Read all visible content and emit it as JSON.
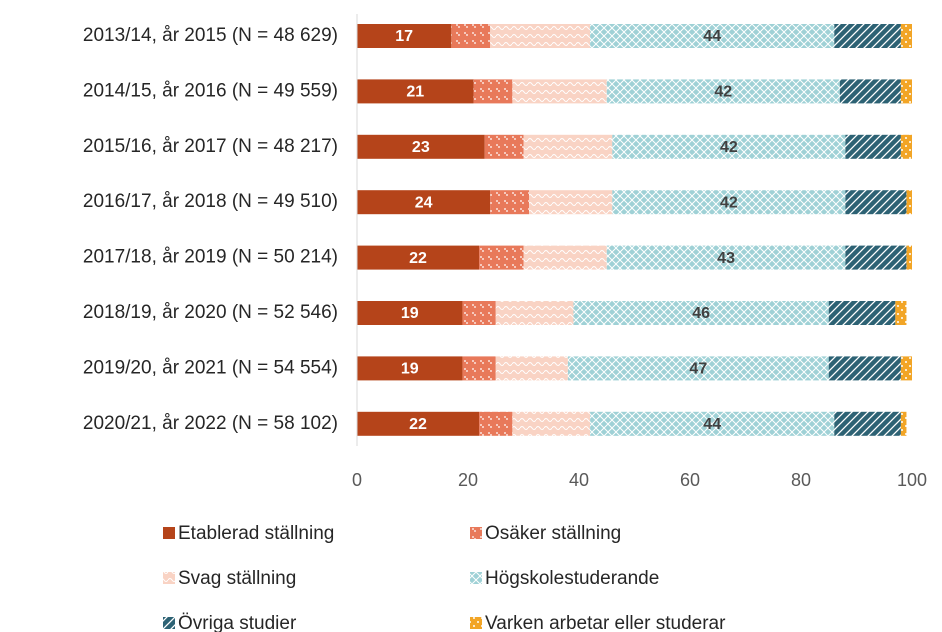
{
  "chart_data": {
    "type": "stacked_barh",
    "categories": [
      "2013/14, år 2015 (N = 48 629)",
      "2014/15, år 2016 (N = 49 559)",
      "2015/16, år 2017 (N = 48 217)",
      "2016/17, år 2018 (N = 49 510)",
      "2017/18, år 2019 (N = 50 214)",
      "2018/19, år 2020 (N = 52 546)",
      "2019/20, år 2021 (N = 54 554)",
      "2020/21, år 2022 (N = 58 102)"
    ],
    "series": [
      {
        "name": "Etablerad ställning",
        "color": "#b5441a",
        "pattern": "solid",
        "show_labels": true,
        "label_color": "#ffffff",
        "values": [
          17,
          21,
          23,
          24,
          22,
          19,
          19,
          22
        ]
      },
      {
        "name": "Osäker ställning",
        "color": "#e8795a",
        "pattern": "checker",
        "show_labels": false,
        "values": [
          7,
          7,
          7,
          7,
          8,
          6,
          6,
          6
        ]
      },
      {
        "name": "Svag ställning",
        "color": "#f9d3c4",
        "pattern": "wave",
        "show_labels": false,
        "values": [
          18,
          17,
          16,
          15,
          15,
          14,
          13,
          14
        ]
      },
      {
        "name": "Högskolestuderande",
        "color": "#9fd1d6",
        "pattern": "cross",
        "show_labels": true,
        "label_color": "#404040",
        "values": [
          44,
          42,
          42,
          42,
          43,
          46,
          47,
          44
        ]
      },
      {
        "name": "Övriga studier",
        "color": "#2d6274",
        "pattern": "diagonal",
        "show_labels": false,
        "values": [
          12,
          11,
          10,
          11,
          11,
          12,
          13,
          12
        ]
      },
      {
        "name": "Varken arbetar eller studerar",
        "color": "#f2a526",
        "pattern": "dots",
        "show_labels": false,
        "values": [
          2,
          2,
          2,
          1,
          1,
          2,
          2,
          1
        ]
      }
    ],
    "xlim": [
      0,
      100
    ],
    "xticks": [
      0,
      20,
      40,
      60,
      80,
      100
    ],
    "grid": false
  }
}
